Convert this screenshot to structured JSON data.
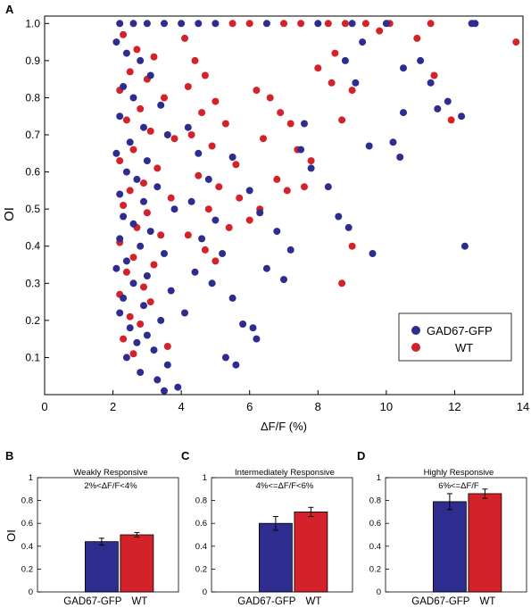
{
  "colors": {
    "gad": "#2e2d8f",
    "wt": "#d3222a"
  },
  "chart_data": [
    {
      "panel": "A",
      "type": "scatter",
      "title": "",
      "xlabel": "ΔF/F (%)",
      "ylabel": "OI",
      "xlim": [
        0,
        14
      ],
      "ylim": [
        0,
        1.02
      ],
      "xticks": [
        0,
        2,
        4,
        6,
        8,
        10,
        12,
        14
      ],
      "yticks": [
        0.1,
        0.2,
        0.3,
        0.4,
        0.5,
        0.6,
        0.7,
        0.8,
        0.9,
        1.0
      ],
      "legend_position": "bottom-right",
      "series": [
        {
          "name": "GAD67-GFP",
          "color": "#2e2d8f",
          "points": [
            [
              2.2,
              1.0
            ],
            [
              2.6,
              1.0
            ],
            [
              3.0,
              1.0
            ],
            [
              3.5,
              1.0
            ],
            [
              4.0,
              1.0
            ],
            [
              4.5,
              1.0
            ],
            [
              5.0,
              1.0
            ],
            [
              6.5,
              1.0
            ],
            [
              8.0,
              1.0
            ],
            [
              9.0,
              1.0
            ],
            [
              10.0,
              1.0
            ],
            [
              12.5,
              1.0
            ],
            [
              12.6,
              1.0
            ],
            [
              2.1,
              0.95
            ],
            [
              2.4,
              0.92
            ],
            [
              2.8,
              0.9
            ],
            [
              3.1,
              0.86
            ],
            [
              2.3,
              0.83
            ],
            [
              2.6,
              0.8
            ],
            [
              3.4,
              0.78
            ],
            [
              2.2,
              0.75
            ],
            [
              2.9,
              0.72
            ],
            [
              3.6,
              0.7
            ],
            [
              2.5,
              0.68
            ],
            [
              2.1,
              0.65
            ],
            [
              3.0,
              0.63
            ],
            [
              2.4,
              0.6
            ],
            [
              2.7,
              0.58
            ],
            [
              3.3,
              0.56
            ],
            [
              2.2,
              0.54
            ],
            [
              2.9,
              0.52
            ],
            [
              3.8,
              0.5
            ],
            [
              2.3,
              0.48
            ],
            [
              2.6,
              0.46
            ],
            [
              3.1,
              0.44
            ],
            [
              2.2,
              0.42
            ],
            [
              2.8,
              0.4
            ],
            [
              3.5,
              0.38
            ],
            [
              2.4,
              0.36
            ],
            [
              2.1,
              0.34
            ],
            [
              3.0,
              0.32
            ],
            [
              2.6,
              0.3
            ],
            [
              3.7,
              0.28
            ],
            [
              2.3,
              0.26
            ],
            [
              2.9,
              0.24
            ],
            [
              2.2,
              0.22
            ],
            [
              3.4,
              0.2
            ],
            [
              2.5,
              0.18
            ],
            [
              3.0,
              0.16
            ],
            [
              2.7,
              0.14
            ],
            [
              3.2,
              0.12
            ],
            [
              2.4,
              0.1
            ],
            [
              3.6,
              0.08
            ],
            [
              2.8,
              0.06
            ],
            [
              3.3,
              0.04
            ],
            [
              3.9,
              0.02
            ],
            [
              3.5,
              0.01
            ],
            [
              4.2,
              0.72
            ],
            [
              4.5,
              0.65
            ],
            [
              4.8,
              0.58
            ],
            [
              4.3,
              0.52
            ],
            [
              5.0,
              0.47
            ],
            [
              4.6,
              0.42
            ],
            [
              5.2,
              0.38
            ],
            [
              4.4,
              0.33
            ],
            [
              4.9,
              0.3
            ],
            [
              5.5,
              0.26
            ],
            [
              4.1,
              0.22
            ],
            [
              5.8,
              0.19
            ],
            [
              5.3,
              0.1
            ],
            [
              5.6,
              0.08
            ],
            [
              5.5,
              0.64
            ],
            [
              6.0,
              0.55
            ],
            [
              6.3,
              0.49
            ],
            [
              6.8,
              0.44
            ],
            [
              7.2,
              0.39
            ],
            [
              6.5,
              0.34
            ],
            [
              7.0,
              0.31
            ],
            [
              6.2,
              0.15
            ],
            [
              6.1,
              0.18
            ],
            [
              7.5,
              0.66
            ],
            [
              7.8,
              0.61
            ],
            [
              8.3,
              0.56
            ],
            [
              8.6,
              0.48
            ],
            [
              8.9,
              0.45
            ],
            [
              7.6,
              0.73
            ],
            [
              8.8,
              0.9
            ],
            [
              9.1,
              0.84
            ],
            [
              9.3,
              0.95
            ],
            [
              9.5,
              0.67
            ],
            [
              9.6,
              0.38
            ],
            [
              10.2,
              0.68
            ],
            [
              10.4,
              0.64
            ],
            [
              10.5,
              0.76
            ],
            [
              11.0,
              0.9
            ],
            [
              11.3,
              0.84
            ],
            [
              11.5,
              0.77
            ],
            [
              11.8,
              0.79
            ],
            [
              12.2,
              0.75
            ],
            [
              12.3,
              0.4
            ],
            [
              10.5,
              0.88
            ]
          ]
        },
        {
          "name": "WT",
          "color": "#d3222a",
          "points": [
            [
              5.5,
              1.0
            ],
            [
              6.0,
              1.0
            ],
            [
              7.0,
              1.0
            ],
            [
              7.5,
              1.0
            ],
            [
              8.3,
              1.0
            ],
            [
              8.8,
              1.0
            ],
            [
              9.4,
              1.0
            ],
            [
              10.1,
              1.0
            ],
            [
              11.3,
              1.0
            ],
            [
              13.8,
              0.95
            ],
            [
              2.3,
              0.97
            ],
            [
              2.7,
              0.93
            ],
            [
              3.2,
              0.91
            ],
            [
              2.5,
              0.87
            ],
            [
              3.0,
              0.85
            ],
            [
              2.2,
              0.82
            ],
            [
              3.5,
              0.8
            ],
            [
              2.8,
              0.77
            ],
            [
              2.4,
              0.74
            ],
            [
              3.1,
              0.71
            ],
            [
              3.8,
              0.69
            ],
            [
              2.6,
              0.66
            ],
            [
              2.2,
              0.63
            ],
            [
              3.3,
              0.61
            ],
            [
              2.9,
              0.57
            ],
            [
              2.5,
              0.55
            ],
            [
              3.7,
              0.53
            ],
            [
              2.3,
              0.51
            ],
            [
              3.0,
              0.49
            ],
            [
              2.7,
              0.45
            ],
            [
              3.4,
              0.43
            ],
            [
              2.2,
              0.41
            ],
            [
              2.6,
              0.37
            ],
            [
              3.2,
              0.35
            ],
            [
              2.4,
              0.33
            ],
            [
              2.9,
              0.29
            ],
            [
              2.2,
              0.27
            ],
            [
              3.1,
              0.25
            ],
            [
              2.5,
              0.21
            ],
            [
              2.8,
              0.19
            ],
            [
              2.3,
              0.15
            ],
            [
              3.6,
              0.13
            ],
            [
              2.6,
              0.11
            ],
            [
              4.1,
              0.96
            ],
            [
              4.4,
              0.9
            ],
            [
              4.7,
              0.86
            ],
            [
              4.2,
              0.83
            ],
            [
              5.0,
              0.79
            ],
            [
              4.6,
              0.76
            ],
            [
              5.3,
              0.73
            ],
            [
              4.3,
              0.7
            ],
            [
              4.9,
              0.67
            ],
            [
              5.6,
              0.62
            ],
            [
              4.5,
              0.59
            ],
            [
              5.1,
              0.56
            ],
            [
              5.7,
              0.53
            ],
            [
              4.8,
              0.5
            ],
            [
              6.0,
              0.47
            ],
            [
              5.4,
              0.45
            ],
            [
              4.2,
              0.43
            ],
            [
              4.7,
              0.39
            ],
            [
              5.0,
              0.36
            ],
            [
              6.2,
              0.82
            ],
            [
              6.6,
              0.8
            ],
            [
              6.9,
              0.76
            ],
            [
              7.2,
              0.73
            ],
            [
              6.4,
              0.69
            ],
            [
              7.4,
              0.66
            ],
            [
              7.8,
              0.63
            ],
            [
              6.8,
              0.58
            ],
            [
              7.1,
              0.55
            ],
            [
              6.3,
              0.5
            ],
            [
              8.0,
              0.88
            ],
            [
              8.4,
              0.84
            ],
            [
              8.7,
              0.74
            ],
            [
              9.0,
              0.82
            ],
            [
              8.5,
              0.92
            ],
            [
              9.8,
              0.98
            ],
            [
              10.9,
              0.96
            ],
            [
              11.4,
              0.86
            ],
            [
              11.9,
              0.74
            ],
            [
              9.0,
              0.4
            ],
            [
              8.7,
              0.3
            ],
            [
              7.6,
              0.56
            ]
          ]
        }
      ]
    },
    {
      "panel": "B",
      "type": "bar",
      "title": "Weakly Responsive",
      "subtitle": "2%<ΔF/F<4%",
      "ylabel": "OI",
      "ylim": [
        0,
        1
      ],
      "yticks": [
        0,
        0.2,
        0.4,
        0.6,
        0.8,
        1
      ],
      "categories": [
        "GAD67-GFP",
        "WT"
      ],
      "values": [
        0.44,
        0.5
      ],
      "errors": [
        0.03,
        0.02
      ]
    },
    {
      "panel": "C",
      "type": "bar",
      "title": "Intermediately Responsive",
      "subtitle": "4%<=ΔF/F<6%",
      "ylim": [
        0,
        1
      ],
      "yticks": [
        0,
        0.2,
        0.4,
        0.6,
        0.8,
        1
      ],
      "categories": [
        "GAD67-GFP",
        "WT"
      ],
      "values": [
        0.6,
        0.7
      ],
      "errors": [
        0.06,
        0.04
      ]
    },
    {
      "panel": "D",
      "type": "bar",
      "title": "Highly Responsive",
      "subtitle": "6%<=ΔF/F",
      "ylim": [
        0,
        1
      ],
      "yticks": [
        0,
        0.2,
        0.4,
        0.6,
        0.8,
        1
      ],
      "categories": [
        "GAD67-GFP",
        "WT"
      ],
      "values": [
        0.79,
        0.86
      ],
      "errors": [
        0.07,
        0.04
      ]
    }
  ]
}
